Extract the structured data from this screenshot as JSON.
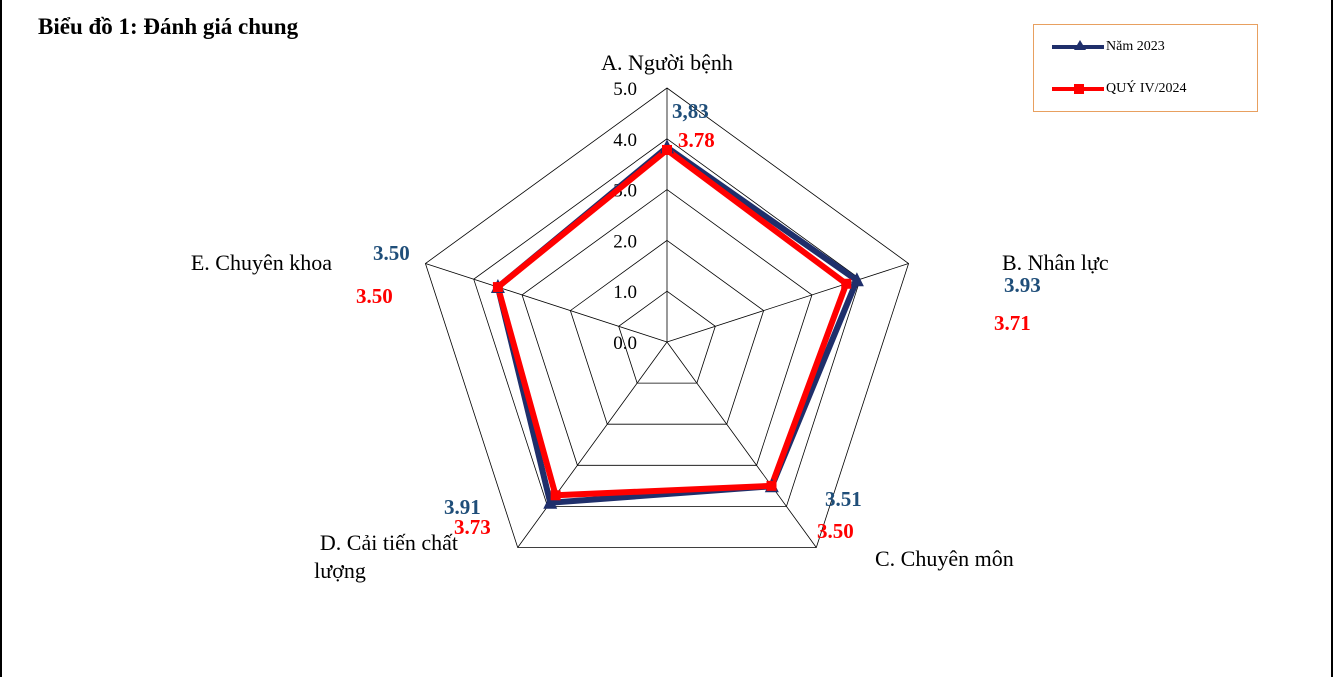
{
  "chart_data": {
    "type": "radar",
    "title": "Biểu đồ 1: Đánh giá chung",
    "categories": [
      "A. Người bệnh",
      "B. Nhân lực",
      "C. Chuyên môn",
      "D. Cải tiến chất lượng",
      "E. Chuyên khoa"
    ],
    "rlim": [
      0,
      5
    ],
    "ticks": [
      "0.0",
      "1.0",
      "2.0",
      "3.0",
      "4.0",
      "5.0"
    ],
    "grid": true,
    "legend_position": "top-right",
    "series": [
      {
        "name": "Năm 2023",
        "color": "#1f2f6b",
        "marker": "triangle",
        "values": [
          3.83,
          3.93,
          3.51,
          3.91,
          3.5
        ],
        "data_labels": [
          "3,83",
          "3.93",
          "3.51",
          "3.91",
          "3.50"
        ],
        "label_color": "#1f4e79"
      },
      {
        "name": "QUÝ IV/2024",
        "color": "#ff0000",
        "marker": "square",
        "values": [
          3.78,
          3.71,
          3.5,
          3.73,
          3.5
        ],
        "data_labels": [
          "3.78",
          "3.71",
          "3.50",
          "3.73",
          "3.50"
        ],
        "label_color": "#ff0000"
      }
    ]
  }
}
